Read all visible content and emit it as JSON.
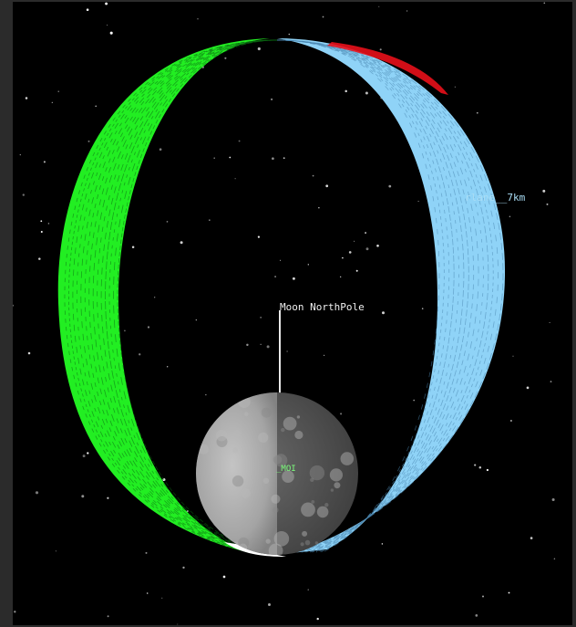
{
  "viewport": {
    "background": "#000000",
    "frame_color": "#2b2b2b"
  },
  "colors": {
    "orbit_near_side": "#22ee22",
    "orbit_far_side": "#8fd3f7",
    "orbit_highlight": "#e8101a",
    "moon_lit": "#a9a9a9",
    "moon_dark": "#5c5c5c",
    "pole_axis": "#e8e8e8",
    "stars": "#ffffff"
  },
  "labels": {
    "pole": "Moon NorthPole",
    "orbit": "rlane__7km",
    "site": "_MOI"
  },
  "icons": {
    "moon": "moon-sphere",
    "pole_axis": "north-pole-axis-line"
  }
}
